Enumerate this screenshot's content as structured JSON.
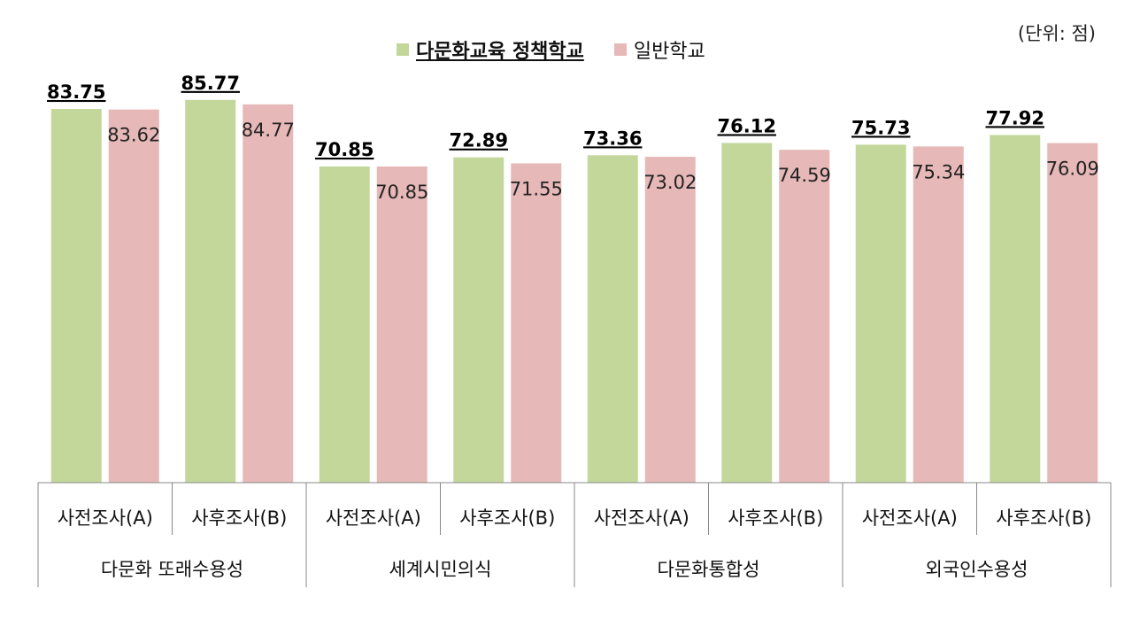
{
  "unit_note": "(단위: 점)",
  "legend": {
    "series_a": "다문화교육 정책학교",
    "series_b": "일반학교"
  },
  "colors": {
    "series_a": "#c4d79b",
    "series_b": "#e6b8b7",
    "axis": "#888888"
  },
  "chart_data": {
    "type": "bar",
    "groups": [
      "다문화 또래수용성",
      "세계시민의식",
      "다문화통합성",
      "외국인수용성"
    ],
    "categories": [
      "사전조사(A)",
      "사후조사(B)",
      "사전조사(A)",
      "사후조사(B)",
      "사전조사(A)",
      "사후조사(B)",
      "사전조사(A)",
      "사후조사(B)"
    ],
    "series": [
      {
        "name": "다문화교육 정책학교",
        "values": [
          83.75,
          85.77,
          70.85,
          72.89,
          73.36,
          76.12,
          75.73,
          77.92
        ]
      },
      {
        "name": "일반학교",
        "values": [
          83.62,
          84.77,
          70.85,
          71.55,
          73.02,
          74.59,
          75.34,
          76.09
        ]
      }
    ],
    "legend_position": "top-center",
    "grid": false
  }
}
